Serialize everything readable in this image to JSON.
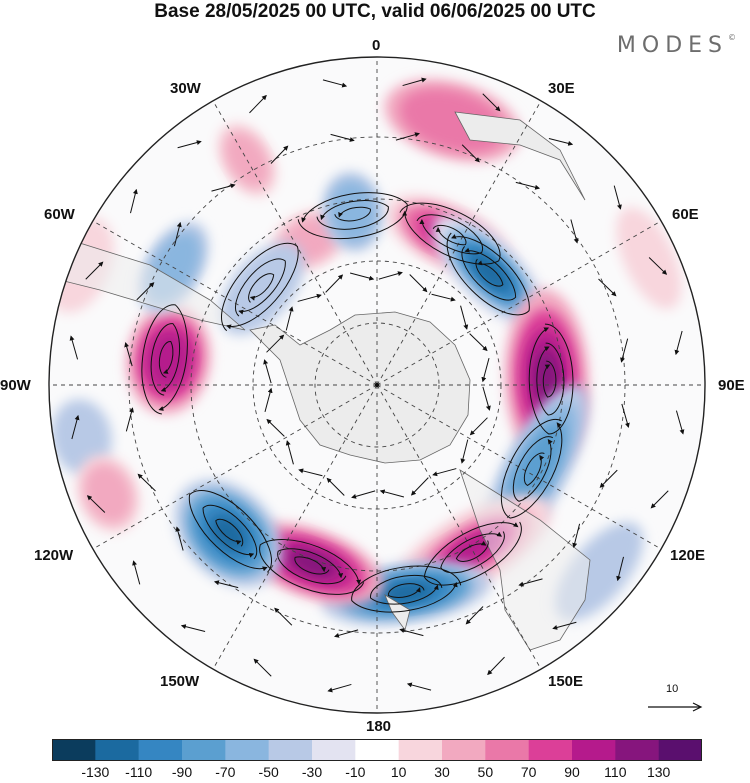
{
  "title": "Base 28/05/2025 00 UTC, valid 06/06/2025 00 UTC",
  "brand": {
    "name": "MODES",
    "mark": "©"
  },
  "longitude_labels": {
    "0": "0",
    "30E": "30E",
    "60E": "60E",
    "90E": "90E",
    "120E": "120E",
    "150E": "150E",
    "180": "180",
    "150W": "150W",
    "120W": "120W",
    "90W": "90W",
    "60W": "60W",
    "30W": "30W"
  },
  "vector_reference": {
    "value": "10",
    "icon": "arrow-right-icon"
  },
  "map": {
    "projection": "south polar stereographic",
    "field_palette": [
      "#0b3c5d",
      "#1b6aa0",
      "#3586c2",
      "#5b9fd0",
      "#8ab6df",
      "#b8c9e6",
      "#e3e3f1",
      "#ffffff",
      "#f8d6dd",
      "#f2a9c0",
      "#ea78a8",
      "#dc3f98",
      "#b51a8c",
      "#86157d",
      "#5a0f6e"
    ],
    "land_color": "#ececec",
    "coastline_color": "#666666"
  },
  "colorbar": {
    "colors": [
      "#0b3c5d",
      "#1b6aa0",
      "#3586c2",
      "#5b9fd0",
      "#8ab6df",
      "#b8c9e6",
      "#e3e3f1",
      "#ffffff",
      "#f8d6dd",
      "#f2a9c0",
      "#ea78a8",
      "#dc3f98",
      "#b51a8c",
      "#86157d",
      "#5a0f6e"
    ],
    "ticks": [
      "-130",
      "-110",
      "-90",
      "-70",
      "-50",
      "-30",
      "-10",
      "10",
      "30",
      "50",
      "70",
      "90",
      "110",
      "130"
    ]
  }
}
